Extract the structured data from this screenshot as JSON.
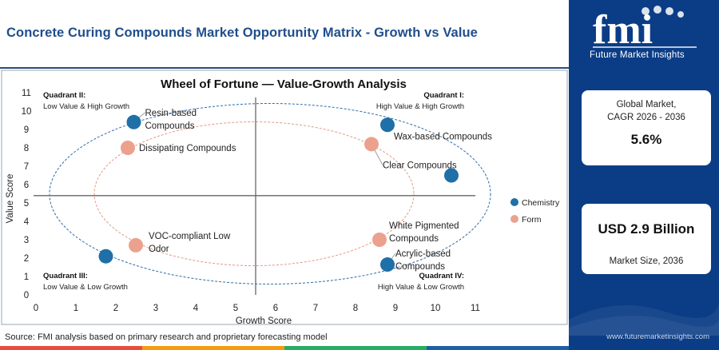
{
  "page_title": "Concrete Curing Compounds Market Opportunity Matrix - Growth vs Value",
  "source_note": "Source: FMI analysis based on primary research and proprietary forecasting model",
  "brand": {
    "name": "Future Market Insights",
    "website": "www.futuremarketinsights.com",
    "primary_color": "#0b3d86",
    "accent_colors": [
      "#e74c3c",
      "#f39c12",
      "#27ae60",
      "#1f5fa8",
      "#8e44ad"
    ]
  },
  "stats": {
    "cagr_label_line1": "Global Market,",
    "cagr_label_line2": "CAGR 2026 - 2036",
    "cagr_value": "5.6%",
    "size_value": "USD 2.9 Billion",
    "size_label": "Market Size, 2036"
  },
  "chart_data": {
    "type": "scatter",
    "title": "Wheel of Fortune — Value-Growth Analysis",
    "xlabel": "Growth Score",
    "ylabel": "Value Score",
    "xlim": [
      0,
      11
    ],
    "ylim": [
      0,
      11
    ],
    "x_ticks": [
      0,
      1,
      2,
      3,
      4,
      5,
      6,
      7,
      8,
      9,
      10,
      11
    ],
    "y_ticks": [
      0,
      1,
      2,
      3,
      4,
      5,
      6,
      7,
      8,
      9,
      10,
      11
    ],
    "grid": false,
    "divider_x": 5.5,
    "divider_y": 5.4,
    "legend_position": "right",
    "series": [
      {
        "name": "Chemistry",
        "color": "#1f6fa8",
        "points": [
          {
            "label_lines": [
              "Resin-based",
              "Compounds"
            ],
            "x": 2.45,
            "y": 9.4
          },
          {
            "label_lines": [
              "Wax-based Compounds"
            ],
            "x": 8.8,
            "y": 9.25
          },
          {
            "label_lines": [],
            "x": 10.4,
            "y": 6.5
          },
          {
            "label_lines": [],
            "x": 1.75,
            "y": 2.1
          },
          {
            "label_lines": [
              "Acrylic-based",
              "Compounds"
            ],
            "x": 8.8,
            "y": 1.65
          }
        ]
      },
      {
        "name": "Form",
        "color": "#eba18e",
        "points": [
          {
            "label_lines": [
              "Dissipating Compounds"
            ],
            "x": 2.3,
            "y": 8.0
          },
          {
            "label_lines": [
              "Clear Compounds"
            ],
            "x": 8.4,
            "y": 8.2
          },
          {
            "label_lines": [
              "VOC-compliant Low",
              "Odor"
            ],
            "x": 2.5,
            "y": 2.7
          },
          {
            "label_lines": [
              "White Pigmented",
              "Compounds"
            ],
            "x": 8.6,
            "y": 3.0
          }
        ]
      }
    ],
    "quadrants": [
      {
        "name": "Quadrant II:",
        "desc": "Low Value & High Growth",
        "pos": "top-left"
      },
      {
        "name": "Quadrant I:",
        "desc": "High Value & High Growth",
        "pos": "top-right"
      },
      {
        "name": "Quadrant III:",
        "desc": "Low Value & Low Growth",
        "pos": "bottom-left"
      },
      {
        "name": "Quadrant IV:",
        "desc": "High Value & Low Growth",
        "pos": "bottom-right"
      }
    ]
  }
}
